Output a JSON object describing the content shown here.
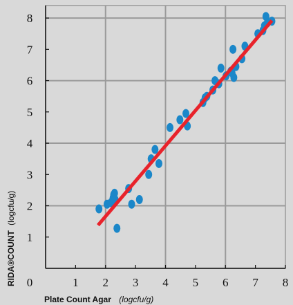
{
  "chart_data": {
    "type": "scatter",
    "xlabel": "Plate Count Agar",
    "xlabel_unit": "(logcfu/g)",
    "ylabel": "RIDA®COUNT",
    "ylabel_unit": "(logcfu/g)",
    "xlim": [
      0,
      8
    ],
    "ylim": [
      0,
      8.4
    ],
    "x_ticks": [
      0,
      1,
      2,
      3,
      4,
      5,
      6,
      7,
      8
    ],
    "y_ticks": [
      0,
      1,
      2,
      3,
      4,
      5,
      6,
      7,
      8
    ],
    "grid": true,
    "colors": {
      "points": "#1b87c9",
      "fit_line": "#e8232b",
      "grid": "#9a9a9a",
      "axes": "#111111",
      "plot_bg": "#d9d9d9"
    },
    "series": [
      {
        "type": "scatter",
        "x": [
          1.78,
          2.05,
          2.18,
          2.25,
          2.27,
          2.3,
          2.32,
          2.38,
          2.77,
          2.87,
          3.13,
          3.44,
          3.52,
          3.65,
          3.78,
          4.15,
          4.48,
          4.68,
          4.73,
          5.25,
          5.32,
          5.38,
          5.58,
          5.65,
          5.78,
          5.85,
          6.02,
          6.18,
          6.22,
          6.25,
          6.28,
          6.35,
          6.55,
          6.65,
          7.08,
          7.25,
          7.3,
          7.35,
          7.4,
          7.55
        ],
        "y": [
          1.9,
          2.05,
          2.1,
          2.25,
          2.35,
          2.4,
          2.2,
          1.28,
          2.55,
          2.05,
          2.2,
          3.0,
          3.5,
          3.8,
          3.35,
          4.5,
          4.75,
          4.95,
          4.55,
          5.3,
          5.45,
          5.5,
          5.7,
          6.0,
          5.9,
          6.4,
          6.15,
          6.3,
          6.25,
          7.0,
          6.1,
          6.45,
          6.7,
          7.1,
          7.5,
          7.6,
          7.75,
          8.05,
          7.85,
          7.9
        ]
      },
      {
        "type": "line",
        "x": [
          1.75,
          7.55
        ],
        "y": [
          1.38,
          7.92
        ]
      }
    ]
  }
}
